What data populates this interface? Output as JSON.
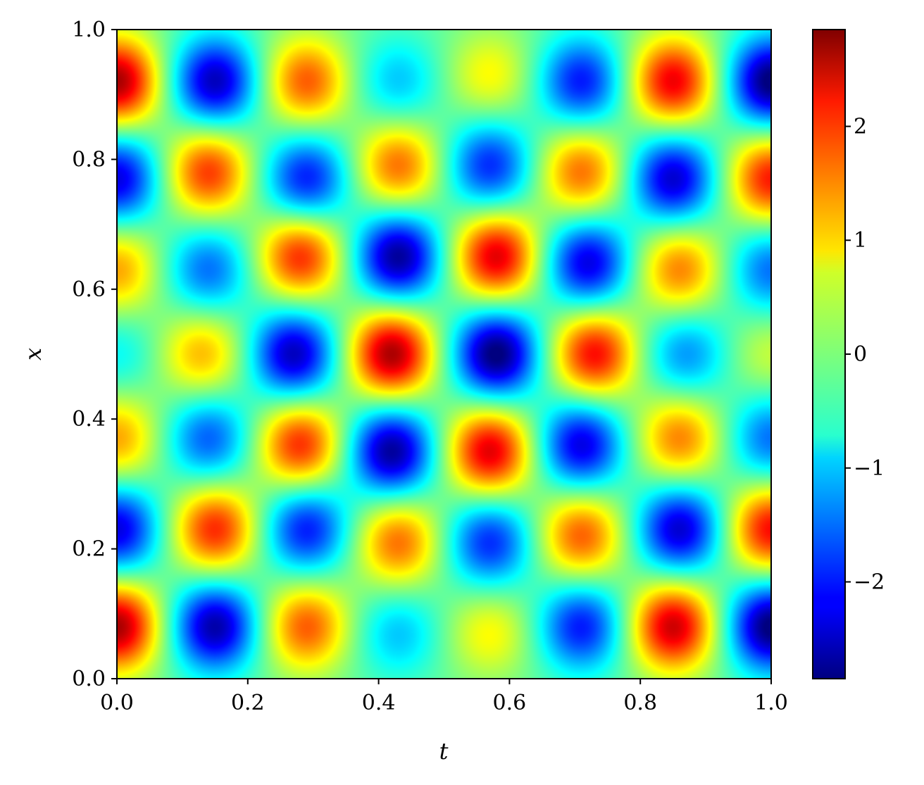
{
  "chart_data": {
    "type": "heatmap",
    "title": "",
    "xlabel": "t",
    "ylabel": "x",
    "xlim": [
      0.0,
      1.0
    ],
    "ylim": [
      0.0,
      1.0
    ],
    "x_ticks": [
      0.0,
      0.2,
      0.4,
      0.6,
      0.8,
      1.0
    ],
    "x_tick_labels": [
      "0.0",
      "0.2",
      "0.4",
      "0.6",
      "0.8",
      "1.0"
    ],
    "y_ticks": [
      0.0,
      0.2,
      0.4,
      0.6,
      0.8,
      1.0
    ],
    "y_tick_labels": [
      "0.0",
      "0.2",
      "0.4",
      "0.6",
      "0.8",
      "1.0"
    ],
    "colormap": "jet",
    "colorbar": {
      "range": [
        -2.85,
        2.85
      ],
      "ticks": [
        -2,
        -1,
        0,
        1,
        2
      ],
      "tick_labels": [
        "−2",
        "−1",
        "0",
        "1",
        "2"
      ]
    },
    "field_peaks": [
      {
        "t": 0.0,
        "x": 0.92,
        "value": 2.8
      },
      {
        "t": 0.15,
        "x": 0.92,
        "value": -2.4
      },
      {
        "t": 0.29,
        "x": 0.92,
        "value": 1.8
      },
      {
        "t": 0.43,
        "x": 0.92,
        "value": -0.9
      },
      {
        "t": 0.57,
        "x": 0.93,
        "value": 0.9
      },
      {
        "t": 0.71,
        "x": 0.92,
        "value": -1.9
      },
      {
        "t": 0.85,
        "x": 0.92,
        "value": 2.4
      },
      {
        "t": 1.0,
        "x": 0.92,
        "value": -2.8
      },
      {
        "t": 0.0,
        "x": 0.77,
        "value": -2.2
      },
      {
        "t": 0.14,
        "x": 0.78,
        "value": 2.0
      },
      {
        "t": 0.29,
        "x": 0.77,
        "value": -1.9
      },
      {
        "t": 0.43,
        "x": 0.79,
        "value": 1.7
      },
      {
        "t": 0.57,
        "x": 0.79,
        "value": -1.8
      },
      {
        "t": 0.71,
        "x": 0.78,
        "value": 1.7
      },
      {
        "t": 0.85,
        "x": 0.77,
        "value": -2.3
      },
      {
        "t": 1.0,
        "x": 0.77,
        "value": 2.2
      },
      {
        "t": 0.0,
        "x": 0.63,
        "value": 1.4
      },
      {
        "t": 0.14,
        "x": 0.63,
        "value": -1.4
      },
      {
        "t": 0.28,
        "x": 0.65,
        "value": 2.1
      },
      {
        "t": 0.43,
        "x": 0.65,
        "value": -2.6
      },
      {
        "t": 0.58,
        "x": 0.65,
        "value": 2.5
      },
      {
        "t": 0.72,
        "x": 0.64,
        "value": -2.2
      },
      {
        "t": 0.86,
        "x": 0.63,
        "value": 1.6
      },
      {
        "t": 1.0,
        "x": 0.63,
        "value": -1.4
      },
      {
        "t": 0.0,
        "x": 0.5,
        "value": -0.6
      },
      {
        "t": 0.13,
        "x": 0.5,
        "value": 1.3
      },
      {
        "t": 0.27,
        "x": 0.5,
        "value": -2.4
      },
      {
        "t": 0.42,
        "x": 0.5,
        "value": 2.8
      },
      {
        "t": 0.58,
        "x": 0.5,
        "value": -2.8
      },
      {
        "t": 0.73,
        "x": 0.5,
        "value": 2.3
      },
      {
        "t": 0.87,
        "x": 0.5,
        "value": -1.2
      },
      {
        "t": 1.0,
        "x": 0.5,
        "value": 0.6
      },
      {
        "t": 0.0,
        "x": 0.37,
        "value": 1.4
      },
      {
        "t": 0.14,
        "x": 0.37,
        "value": -1.5
      },
      {
        "t": 0.28,
        "x": 0.36,
        "value": 2.1
      },
      {
        "t": 0.42,
        "x": 0.35,
        "value": -2.6
      },
      {
        "t": 0.57,
        "x": 0.35,
        "value": 2.5
      },
      {
        "t": 0.71,
        "x": 0.36,
        "value": -2.2
      },
      {
        "t": 0.86,
        "x": 0.37,
        "value": 1.6
      },
      {
        "t": 1.0,
        "x": 0.37,
        "value": -1.4
      },
      {
        "t": 0.0,
        "x": 0.23,
        "value": -2.2
      },
      {
        "t": 0.15,
        "x": 0.23,
        "value": 2.1
      },
      {
        "t": 0.29,
        "x": 0.23,
        "value": -1.9
      },
      {
        "t": 0.43,
        "x": 0.21,
        "value": 1.7
      },
      {
        "t": 0.57,
        "x": 0.21,
        "value": -1.8
      },
      {
        "t": 0.71,
        "x": 0.22,
        "value": 1.8
      },
      {
        "t": 0.86,
        "x": 0.23,
        "value": -2.3
      },
      {
        "t": 1.0,
        "x": 0.23,
        "value": 2.3
      },
      {
        "t": 0.0,
        "x": 0.08,
        "value": 2.8
      },
      {
        "t": 0.15,
        "x": 0.08,
        "value": -2.5
      },
      {
        "t": 0.29,
        "x": 0.08,
        "value": 1.8
      },
      {
        "t": 0.43,
        "x": 0.07,
        "value": -0.9
      },
      {
        "t": 0.57,
        "x": 0.07,
        "value": 0.9
      },
      {
        "t": 0.71,
        "x": 0.08,
        "value": -1.9
      },
      {
        "t": 0.85,
        "x": 0.08,
        "value": 2.6
      },
      {
        "t": 1.0,
        "x": 0.08,
        "value": -2.8
      }
    ]
  }
}
